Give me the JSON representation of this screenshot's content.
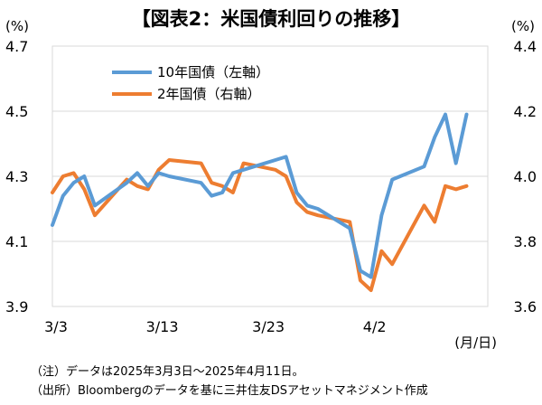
{
  "chart_data": {
    "type": "line",
    "title": "【図表2：米国債利回りの推移】",
    "left_axis_unit": "(%)",
    "right_axis_unit": "(%)",
    "x_axis_unit": "(月/日)",
    "x": [
      "3/3",
      "3/4",
      "3/5",
      "3/6",
      "3/7",
      "3/10",
      "3/11",
      "3/12",
      "3/13",
      "3/14",
      "3/17",
      "3/18",
      "3/19",
      "3/20",
      "3/21",
      "3/24",
      "3/25",
      "3/26",
      "3/27",
      "3/28",
      "3/31",
      "4/1",
      "4/2",
      "4/3",
      "4/4",
      "4/7",
      "4/8",
      "4/9",
      "4/10",
      "4/11"
    ],
    "x_tick_labels": [
      "3/3",
      "3/13",
      "3/23",
      "4/2"
    ],
    "x_tick_dates": [
      "3/3",
      "3/13",
      "3/23",
      "4/2"
    ],
    "x_range": [
      "3/3",
      "4/13"
    ],
    "left_axis": {
      "ylim": [
        3.9,
        4.7
      ],
      "ticks": [
        3.9,
        4.1,
        4.3,
        4.5,
        4.7
      ]
    },
    "right_axis": {
      "ylim": [
        3.6,
        4.4
      ],
      "ticks": [
        3.6,
        3.8,
        4.0,
        4.2,
        4.4
      ]
    },
    "legend_position": "top-left",
    "grid": true,
    "series": [
      {
        "name": "10年国債（左軸）",
        "axis": "left",
        "color": "#5B9BD5",
        "values": [
          4.15,
          4.24,
          4.28,
          4.3,
          4.21,
          4.28,
          4.31,
          4.27,
          4.31,
          4.3,
          4.28,
          4.24,
          4.25,
          4.31,
          4.32,
          4.35,
          4.36,
          4.25,
          4.21,
          4.2,
          4.14,
          4.01,
          3.99,
          4.18,
          4.29,
          4.33,
          4.42,
          4.49,
          4.34,
          4.49
        ]
      },
      {
        "name": "2年国債（右軸）",
        "axis": "right",
        "color": "#ED7D31",
        "values": [
          3.95,
          4.0,
          4.01,
          3.96,
          3.88,
          3.99,
          3.97,
          3.96,
          4.02,
          4.05,
          4.04,
          3.98,
          3.97,
          3.95,
          4.04,
          4.02,
          4.0,
          3.92,
          3.89,
          3.88,
          3.86,
          3.68,
          3.65,
          3.77,
          3.73,
          3.91,
          3.86,
          3.97,
          3.96,
          3.97
        ]
      }
    ]
  },
  "notes": {
    "note1": "（注）データは2025年3月3日～2025年4月11日。",
    "note2": "（出所）Bloombergのデータを基に三井住友DSアセットマネジメント作成"
  }
}
